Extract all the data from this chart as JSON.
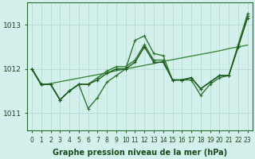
{
  "xlabel": "Graphe pression niveau de la mer (hPa)",
  "bg_color": "#d4f0ec",
  "grid_color": "#b8e0d8",
  "x_ticks": [
    0,
    1,
    2,
    3,
    4,
    5,
    6,
    7,
    8,
    9,
    10,
    11,
    12,
    13,
    14,
    15,
    16,
    17,
    18,
    19,
    20,
    21,
    22,
    23
  ],
  "ylim": [
    1010.6,
    1013.5
  ],
  "yticks": [
    1011,
    1012,
    1013
  ],
  "series": [
    [
      1012.0,
      1011.65,
      1011.65,
      1011.3,
      1011.5,
      1011.65,
      1011.1,
      1011.35,
      1011.7,
      1011.85,
      1012.0,
      1012.65,
      1012.75,
      1012.35,
      1012.3,
      1011.75,
      1011.75,
      1011.75,
      1011.4,
      1011.65,
      1011.8,
      1011.85,
      1012.55,
      1013.25
    ],
    [
      1012.0,
      1011.65,
      1011.65,
      1011.3,
      1011.5,
      1011.65,
      1011.65,
      1011.8,
      1011.95,
      1012.05,
      1012.05,
      1012.2,
      1012.55,
      1012.2,
      1012.2,
      1011.75,
      1011.75,
      1011.8,
      1011.55,
      1011.7,
      1011.85,
      1011.85,
      1012.5,
      1013.2
    ],
    [
      1012.0,
      1011.65,
      1011.65,
      1011.3,
      1011.5,
      1011.65,
      1011.65,
      1011.75,
      1011.9,
      1012.0,
      1012.0,
      1012.15,
      1012.5,
      1012.15,
      1012.15,
      1011.75,
      1011.75,
      1011.8,
      1011.55,
      1011.7,
      1011.85,
      1011.85,
      1012.5,
      1013.15
    ],
    [
      1012.0,
      1011.63,
      1011.67,
      1011.71,
      1011.75,
      1011.79,
      1011.83,
      1011.87,
      1011.91,
      1011.96,
      1012.0,
      1012.04,
      1012.08,
      1012.12,
      1012.17,
      1012.21,
      1012.25,
      1012.29,
      1012.33,
      1012.37,
      1012.41,
      1012.46,
      1012.5,
      1012.54
    ]
  ],
  "line_styles": [
    "line_with_markers",
    "line_with_markers",
    "line_with_markers",
    "straight"
  ],
  "colors": [
    "#2d7a2d",
    "#2d7a2d",
    "#1a5a1a",
    "#3a8a3a"
  ],
  "linewidths": [
    1.0,
    1.0,
    1.0,
    1.0
  ],
  "marker": "+",
  "markersize": 3.5,
  "tick_fontsize": 5.5,
  "xlabel_fontsize": 7,
  "ylabel_fontsize": 7,
  "ytick_fontsize": 6.5
}
